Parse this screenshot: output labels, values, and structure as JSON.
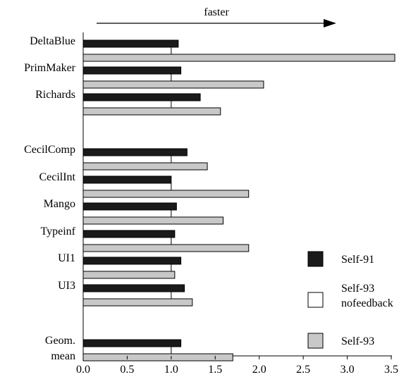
{
  "chart_data": {
    "type": "bar",
    "orientation": "horizontal",
    "annotation": "faster",
    "categories": [
      "DeltaBlue",
      "PrimMaker",
      "Richards",
      "CecilComp",
      "CecilInt",
      "Mango",
      "Typeinf",
      "UI1",
      "UI3",
      "Geom.\nmean"
    ],
    "category_lines": [
      [
        "DeltaBlue"
      ],
      [
        "PrimMaker"
      ],
      [
        "Richards"
      ],
      [
        "CecilComp"
      ],
      [
        "CecilInt"
      ],
      [
        "Mango"
      ],
      [
        "Typeinf"
      ],
      [
        "UI1"
      ],
      [
        "UI3"
      ],
      [
        "Geom.",
        "mean"
      ]
    ],
    "series": [
      {
        "name": "Self-91",
        "name_lines": [
          "Self-91"
        ],
        "color": "#1a1a1a",
        "values": [
          1.08,
          1.11,
          1.33,
          1.18,
          1.0,
          1.06,
          1.04,
          1.11,
          1.15,
          1.11
        ]
      },
      {
        "name": "Self-93 nofeedback",
        "name_lines": [
          "Self-93",
          "nofeedback"
        ],
        "color": "#ffffff",
        "values": [
          1.0,
          1.0,
          1.0,
          1.0,
          1.0,
          1.0,
          1.0,
          1.0,
          1.0,
          1.0
        ]
      },
      {
        "name": "Self-93",
        "name_lines": [
          "Self-93"
        ],
        "color": "#c8c8c8",
        "values": [
          3.54,
          2.05,
          1.56,
          1.41,
          1.88,
          1.59,
          1.88,
          1.04,
          1.24,
          1.7
        ]
      }
    ],
    "x_ticks": [
      "0.0",
      "0.5",
      "1.0",
      "1.5",
      "2.0",
      "2.5",
      "3.0",
      "3.5"
    ],
    "xlim": [
      0,
      3.5
    ],
    "grid": false,
    "legend_position": "right"
  }
}
